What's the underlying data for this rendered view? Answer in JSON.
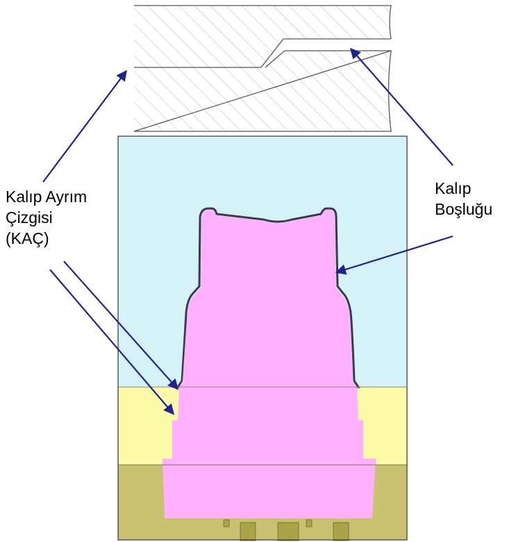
{
  "labels": {
    "parting_line": [
      "Kalıp Ayrım",
      "Çizgisi",
      "(KAÇ)"
    ],
    "cavity": [
      "Kalıp",
      "Boşluğu"
    ]
  },
  "colors": {
    "upper_mold": "#d4f2f8",
    "part": "#ffb0ff",
    "insert_plate": "#fafaa8",
    "base_plate": "#c8c272",
    "pins": "#a8a448",
    "outline": "#333333",
    "cavity_edge": "#3a3a48",
    "arrow": "#22228a",
    "hatch": "#b4b4b4"
  }
}
